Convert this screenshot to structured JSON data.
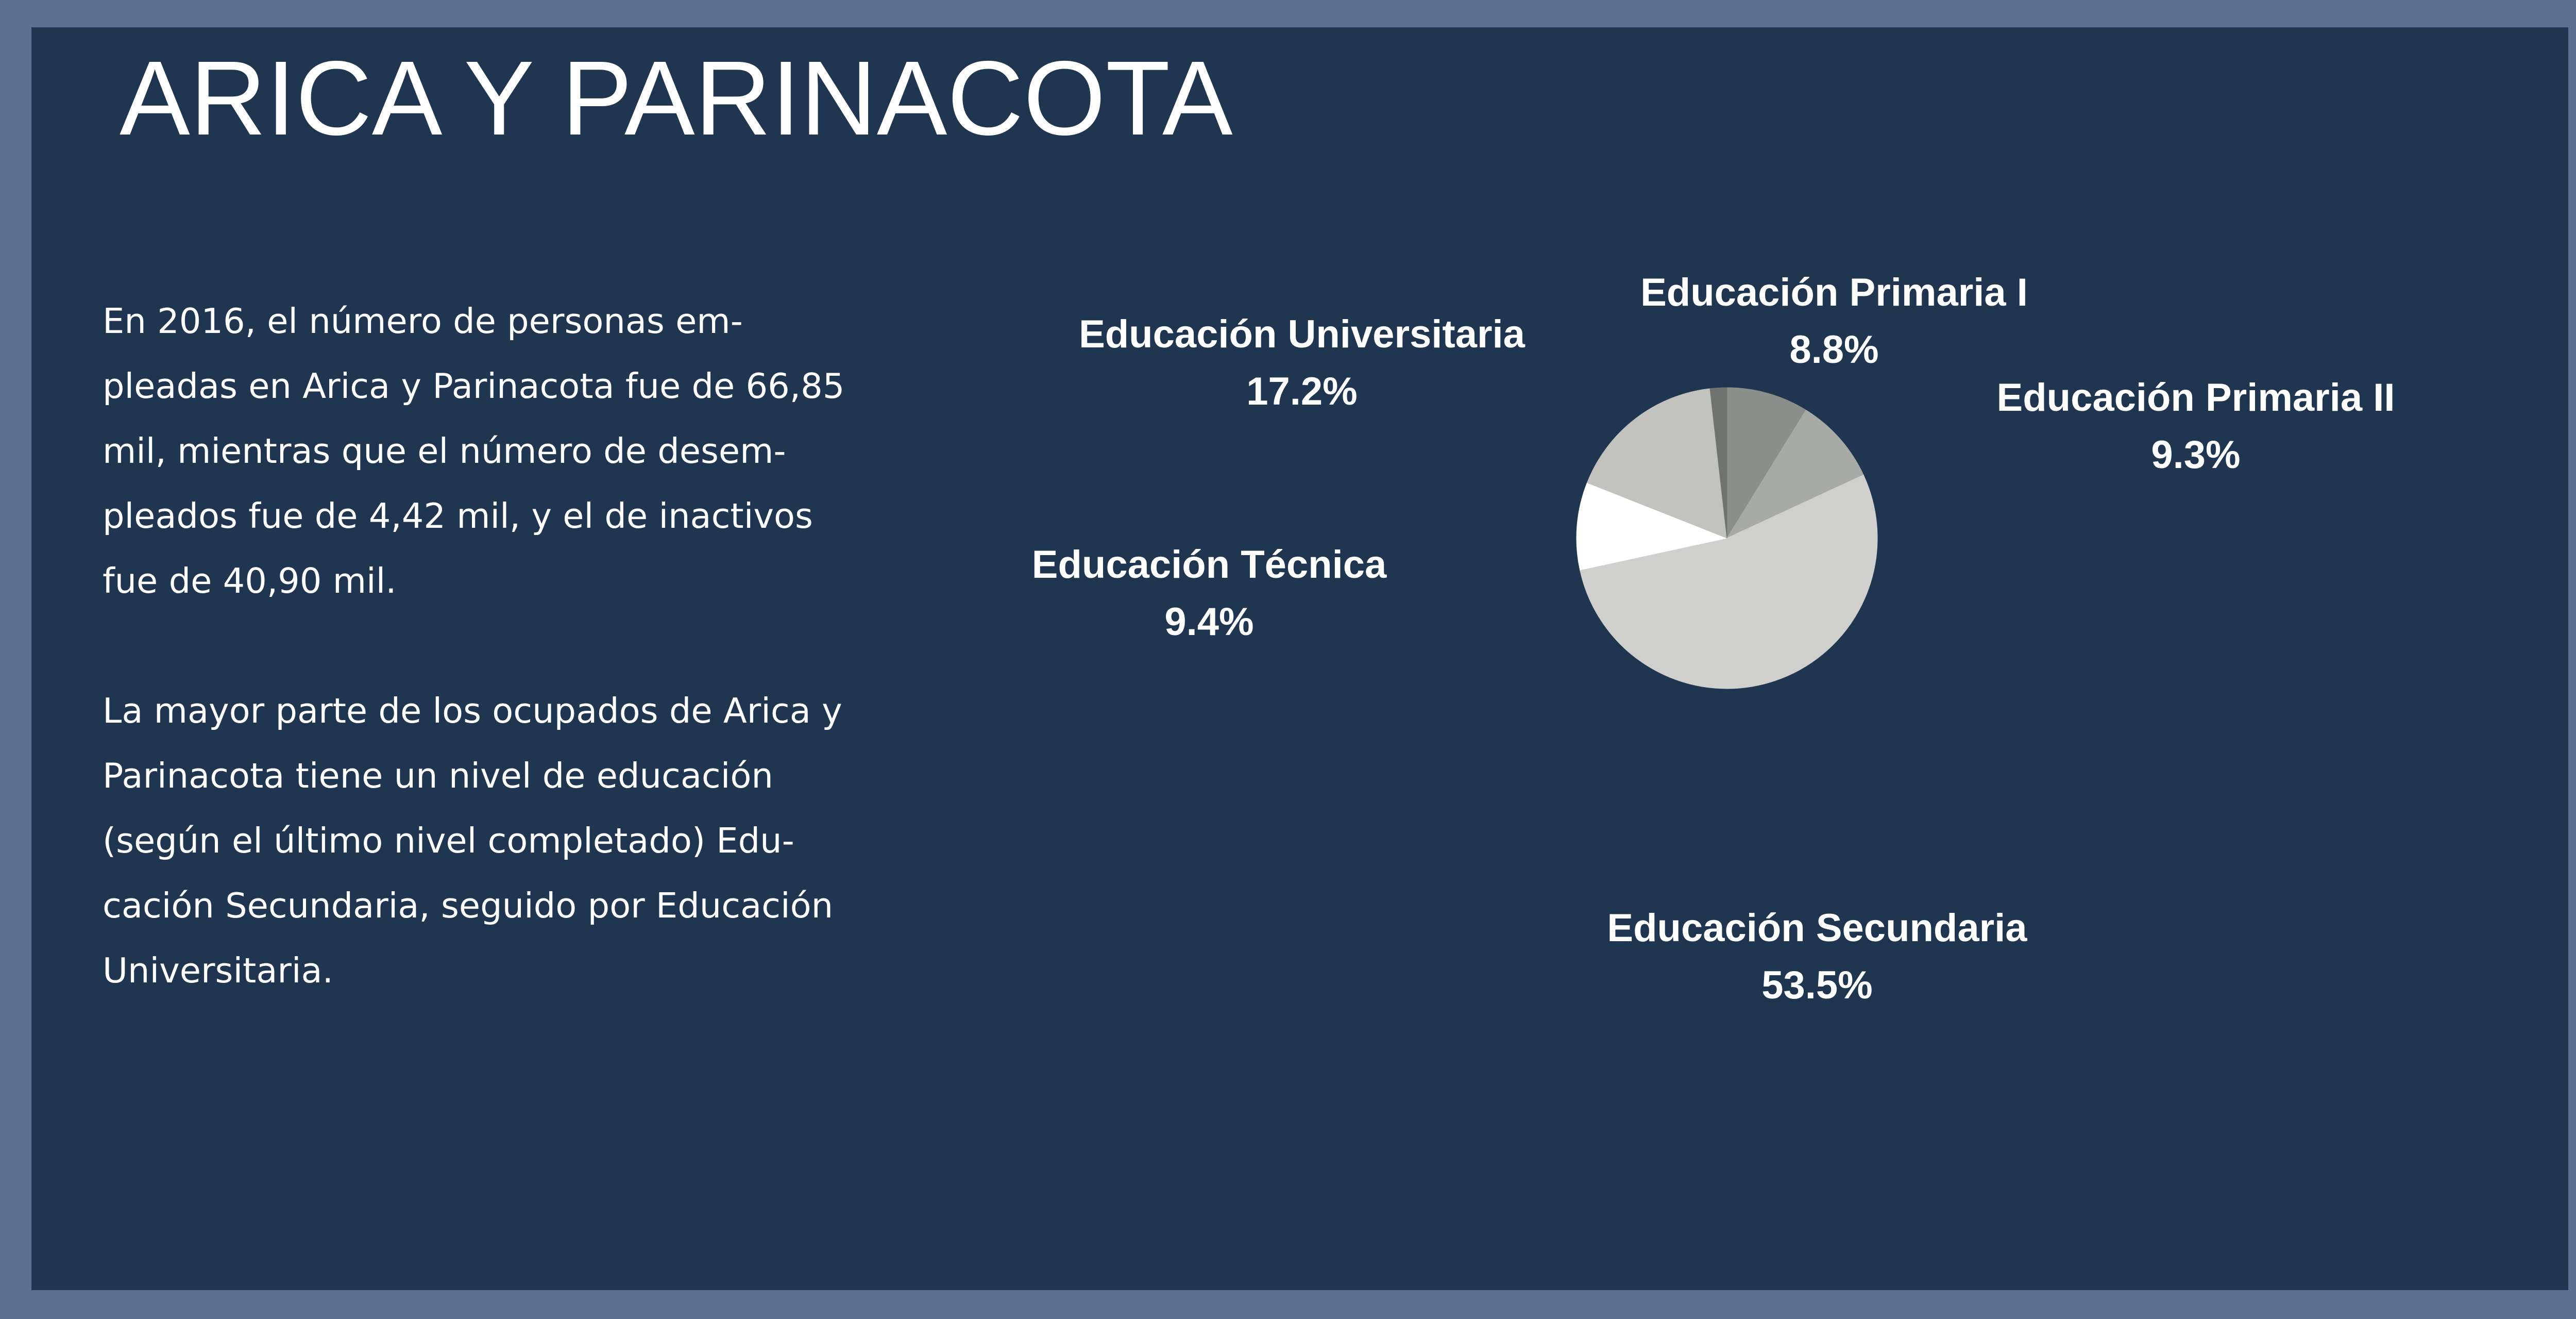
{
  "title": "ARICA Y PARINACOTA",
  "paragraphs": [
    "En 2016, el número de personas em-\npleadas en Arica y Parinacota fue de 66,85\nmil, mientras que el número de desem-\npleados fue de 4,42 mil, y el de inactivos\nfue de 40,90 mil.",
    "La mayor parte de los ocupados de Arica y\nParinacota tiene un nivel de educación\n(según el último nivel completado) Edu-\ncación Secundaria, seguido por Educación\nUniversitaria."
  ],
  "colors": {
    "background": "#1f3550",
    "frame": "#5c7191",
    "text": "#ffffff"
  },
  "chart_data": {
    "type": "pie",
    "categories": [
      "Educación Primaria I",
      "Educación Primaria II",
      "Educación Secundaria",
      "Educación Técnica",
      "Educación Universitaria"
    ],
    "values": [
      8.8,
      9.3,
      53.5,
      9.4,
      17.2
    ],
    "value_labels": [
      "8.8%",
      "9.3%",
      "53.5%",
      "9.4%",
      "17.2%"
    ],
    "colors": [
      "#8b8f8b",
      "#a8aaa7",
      "#cfd0cd",
      "#ffffff",
      "#c2c3bf"
    ],
    "minor_slice": {
      "value": 1.8,
      "color": "#6f7370"
    },
    "start_angle_deg": 0,
    "direction": "clockwise",
    "legend": "none"
  }
}
